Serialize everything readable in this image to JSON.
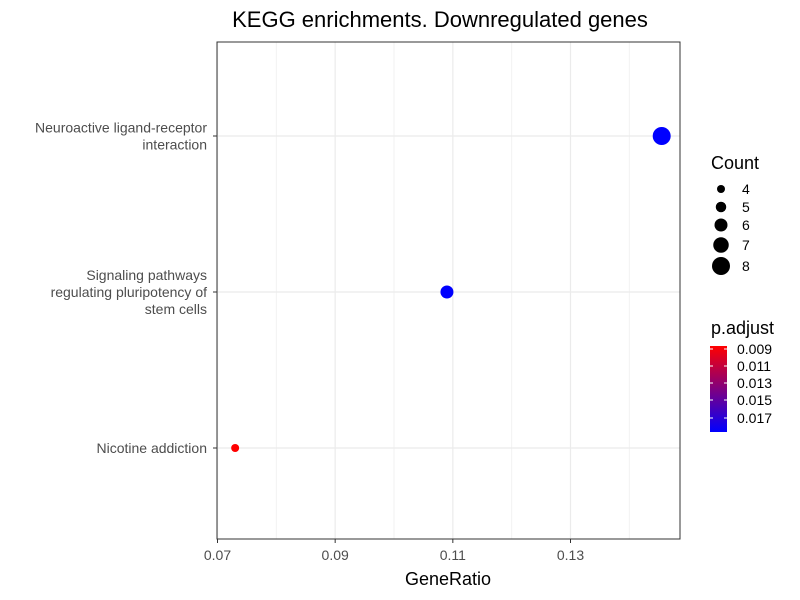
{
  "chart_data": {
    "type": "scatter",
    "title": "KEGG enrichments. Downregulated genes",
    "xlabel": "GeneRatio",
    "ylabel": "",
    "xlim": [
      0.07,
      0.15
    ],
    "xticks": [
      "0.07",
      "0.09",
      "0.11",
      "0.13"
    ],
    "categories": [
      [
        "Neuroactive ligand-receptor",
        "interaction"
      ],
      [
        "Signaling pathways",
        "regulating pluripotency of",
        "stem cells"
      ],
      [
        "Nicotine addiction"
      ]
    ],
    "points": [
      {
        "category": 0,
        "x": 0.1455,
        "count": 8,
        "p_adjust": 0.0175
      },
      {
        "category": 1,
        "x": 0.109,
        "count": 6,
        "p_adjust": 0.0175
      },
      {
        "category": 2,
        "x": 0.073,
        "count": 4,
        "p_adjust": 0.009
      }
    ],
    "grid": true,
    "legend": {
      "size": {
        "title": "Count",
        "labels": [
          "4",
          "5",
          "6",
          "7",
          "8"
        ],
        "values": [
          4,
          5,
          6,
          7,
          8
        ]
      },
      "color": {
        "title": "p.adjust",
        "labels": [
          "0.009",
          "0.011",
          "0.013",
          "0.015",
          "0.017"
        ],
        "low_color": "#ff0000",
        "high_color": "#0000ff"
      },
      "placement": "right"
    }
  }
}
